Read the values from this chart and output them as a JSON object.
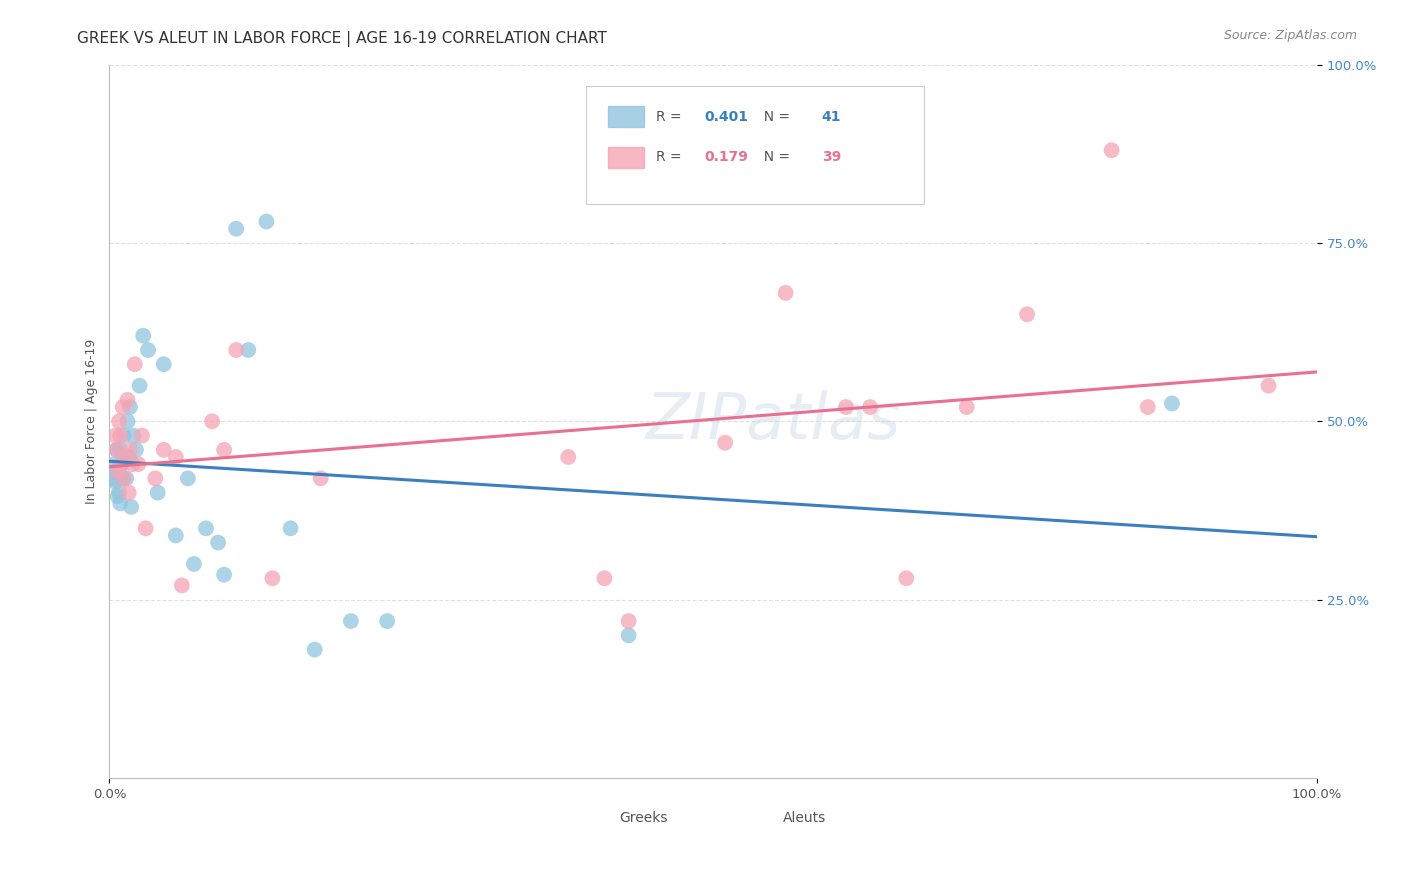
{
  "title": "GREEK VS ALEUT IN LABOR FORCE | AGE 16-19 CORRELATION CHART",
  "source": "Source: ZipAtlas.com",
  "ylabel": "In Labor Force | Age 16-19",
  "xlim": [
    0.0,
    1.0
  ],
  "ylim": [
    0.0,
    1.0
  ],
  "greek_r": 0.401,
  "greek_n": 41,
  "aleut_r": 0.179,
  "aleut_n": 39,
  "greek_color": "#92c5de",
  "aleut_color": "#f4a5b5",
  "greek_line_color": "#3a7fc1",
  "aleut_line_color": "#e87090",
  "watermark": "ZIPatlas",
  "greeks_x": [
    0.003,
    0.004,
    0.005,
    0.006,
    0.006,
    0.007,
    0.008,
    0.008,
    0.009,
    0.009,
    0.01,
    0.011,
    0.012,
    0.013,
    0.014,
    0.015,
    0.016,
    0.017,
    0.018,
    0.02,
    0.022,
    0.025,
    0.028,
    0.032,
    0.04,
    0.045,
    0.055,
    0.065,
    0.07,
    0.08,
    0.09,
    0.095,
    0.105,
    0.115,
    0.13,
    0.15,
    0.17,
    0.2,
    0.23,
    0.43,
    0.88
  ],
  "greeks_y": [
    0.42,
    0.44,
    0.415,
    0.46,
    0.43,
    0.395,
    0.435,
    0.4,
    0.385,
    0.46,
    0.44,
    0.42,
    0.48,
    0.45,
    0.42,
    0.5,
    0.45,
    0.52,
    0.38,
    0.48,
    0.46,
    0.55,
    0.62,
    0.6,
    0.4,
    0.58,
    0.34,
    0.42,
    0.3,
    0.35,
    0.33,
    0.285,
    0.77,
    0.6,
    0.78,
    0.35,
    0.18,
    0.22,
    0.22,
    0.2,
    0.525
  ],
  "aleuts_x": [
    0.005,
    0.006,
    0.007,
    0.008,
    0.009,
    0.01,
    0.011,
    0.012,
    0.013,
    0.015,
    0.016,
    0.017,
    0.019,
    0.021,
    0.024,
    0.027,
    0.03,
    0.038,
    0.045,
    0.055,
    0.06,
    0.085,
    0.095,
    0.105,
    0.135,
    0.175,
    0.38,
    0.41,
    0.43,
    0.51,
    0.56,
    0.61,
    0.63,
    0.66,
    0.71,
    0.76,
    0.83,
    0.86,
    0.96
  ],
  "aleuts_y": [
    0.48,
    0.46,
    0.43,
    0.5,
    0.48,
    0.44,
    0.52,
    0.42,
    0.45,
    0.53,
    0.4,
    0.46,
    0.44,
    0.58,
    0.44,
    0.48,
    0.35,
    0.42,
    0.46,
    0.45,
    0.27,
    0.5,
    0.46,
    0.6,
    0.28,
    0.42,
    0.45,
    0.28,
    0.22,
    0.47,
    0.68,
    0.52,
    0.52,
    0.28,
    0.52,
    0.65,
    0.88,
    0.52,
    0.55
  ],
  "background_color": "#ffffff",
  "grid_color": "#e0e0e0",
  "title_fontsize": 11,
  "axis_label_fontsize": 9,
  "tick_fontsize": 9.5
}
